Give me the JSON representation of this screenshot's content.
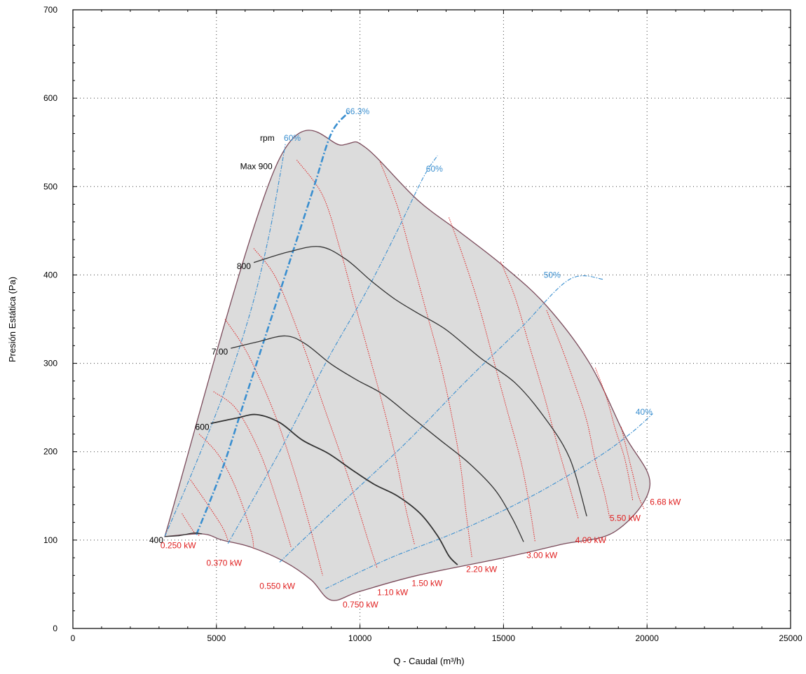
{
  "chart_data": {
    "type": "line",
    "xlabel": "Q - Caudal (m³/h)",
    "ylabel": "Presión Estática (Pa)",
    "xlim": [
      0,
      25000
    ],
    "ylim": [
      0,
      700
    ],
    "xticks": [
      0,
      5000,
      10000,
      15000,
      20000,
      25000
    ],
    "yticks": [
      0,
      100,
      200,
      300,
      400,
      500,
      600,
      700
    ],
    "grid": "dotted",
    "envelope": [
      [
        3200,
        104
      ],
      [
        7100,
        525
      ],
      [
        9400,
        547
      ],
      [
        10200,
        544
      ],
      [
        12000,
        485
      ],
      [
        13500,
        448
      ],
      [
        15000,
        410
      ],
      [
        16500,
        365
      ],
      [
        18000,
        300
      ],
      [
        19200,
        220
      ],
      [
        20100,
        162
      ],
      [
        18900,
        110
      ],
      [
        17000,
        95
      ],
      [
        15000,
        80
      ],
      [
        12000,
        60
      ],
      [
        10000,
        42
      ],
      [
        9000,
        32
      ],
      [
        8300,
        55
      ],
      [
        7400,
        75
      ],
      [
        6200,
        92
      ],
      [
        5200,
        100
      ],
      [
        4500,
        107
      ],
      [
        3200,
        104
      ]
    ],
    "rpm_curves": [
      {
        "label": "Max 900",
        "points": [
          [
            7100,
            525
          ],
          [
            9400,
            547
          ],
          [
            10200,
            544
          ],
          [
            12000,
            485
          ],
          [
            13500,
            448
          ],
          [
            15000,
            410
          ],
          [
            16500,
            365
          ],
          [
            18000,
            300
          ],
          [
            19200,
            220
          ],
          [
            20100,
            162
          ]
        ]
      },
      {
        "label": "800",
        "points": [
          [
            6300,
            414
          ],
          [
            7500,
            426
          ],
          [
            8600,
            432
          ],
          [
            9500,
            418
          ],
          [
            10400,
            393
          ],
          [
            11200,
            373
          ],
          [
            12000,
            357
          ],
          [
            13000,
            338
          ],
          [
            14200,
            306
          ],
          [
            15400,
            278
          ],
          [
            16400,
            240
          ],
          [
            17300,
            193
          ],
          [
            17900,
            127
          ]
        ]
      },
      {
        "label": "7.00",
        "points": [
          [
            5500,
            317
          ],
          [
            6400,
            324
          ],
          [
            7400,
            331
          ],
          [
            8100,
            322
          ],
          [
            9000,
            299
          ],
          [
            9900,
            281
          ],
          [
            10800,
            265
          ],
          [
            11800,
            239
          ],
          [
            12800,
            213
          ],
          [
            13800,
            187
          ],
          [
            14700,
            157
          ],
          [
            15300,
            125
          ],
          [
            15700,
            98
          ]
        ]
      },
      {
        "label": "600",
        "points": [
          [
            4800,
            232
          ],
          [
            5700,
            238
          ],
          [
            6400,
            242
          ],
          [
            7200,
            233
          ],
          [
            8000,
            213
          ],
          [
            8900,
            198
          ],
          [
            9700,
            180
          ],
          [
            10500,
            163
          ],
          [
            11300,
            150
          ],
          [
            12100,
            130
          ],
          [
            12700,
            105
          ],
          [
            13100,
            82
          ],
          [
            13400,
            72
          ]
        ]
      },
      {
        "label": "400",
        "points": [
          [
            3200,
            104
          ],
          [
            3700,
            105
          ],
          [
            4200,
            108
          ],
          [
            4500,
            107
          ]
        ]
      }
    ],
    "efficiency_curves": [
      {
        "label": "60%",
        "points": [
          [
            3200,
            104
          ],
          [
            4200,
            180
          ],
          [
            5300,
            270
          ],
          [
            6200,
            360
          ],
          [
            6800,
            440
          ],
          [
            7200,
            510
          ],
          [
            7400,
            548
          ]
        ]
      },
      {
        "label": "66.3%",
        "points": [
          [
            4300,
            106
          ],
          [
            5200,
            180
          ],
          [
            6000,
            260
          ],
          [
            6800,
            340
          ],
          [
            7600,
            420
          ],
          [
            8400,
            500
          ],
          [
            9000,
            560
          ],
          [
            9600,
            584
          ]
        ]
      },
      {
        "label": "60%",
        "points": [
          [
            5400,
            96
          ],
          [
            7200,
            200
          ],
          [
            8800,
            300
          ],
          [
            10200,
            380
          ],
          [
            11300,
            450
          ],
          [
            12200,
            510
          ],
          [
            12700,
            535
          ]
        ]
      },
      {
        "label": "50%",
        "points": [
          [
            7200,
            75
          ],
          [
            9300,
            140
          ],
          [
            11600,
            210
          ],
          [
            13700,
            280
          ],
          [
            15600,
            340
          ],
          [
            17300,
            395
          ],
          [
            18500,
            395
          ]
        ]
      },
      {
        "label": "40%",
        "points": [
          [
            8800,
            45
          ],
          [
            11000,
            79
          ],
          [
            13500,
            111
          ],
          [
            16000,
            150
          ],
          [
            18200,
            192
          ],
          [
            19400,
            220
          ],
          [
            20200,
            243
          ]
        ]
      }
    ],
    "power_curves": [
      {
        "label": "0.250 kW",
        "points": [
          [
            3800,
            130
          ],
          [
            4200,
            110
          ],
          [
            4400,
            105
          ]
        ]
      },
      {
        "label": "",
        "points": [
          [
            4100,
            168
          ],
          [
            4700,
            140
          ],
          [
            5200,
            115
          ],
          [
            5400,
            100
          ]
        ]
      },
      {
        "label": "0.370 kW",
        "points": [
          [
            4400,
            220
          ],
          [
            5100,
            195
          ],
          [
            5700,
            157
          ],
          [
            6200,
            110
          ],
          [
            6300,
            90
          ]
        ]
      },
      {
        "label": "",
        "points": [
          [
            4900,
            268
          ],
          [
            5700,
            248
          ],
          [
            6500,
            200
          ],
          [
            7100,
            145
          ],
          [
            7600,
            92
          ]
        ]
      },
      {
        "label": "0.550 kW",
        "points": [
          [
            5300,
            350
          ],
          [
            6100,
            310
          ],
          [
            7000,
            245
          ],
          [
            7700,
            178
          ],
          [
            8300,
            110
          ],
          [
            8700,
            60
          ]
        ]
      },
      {
        "label": "0.750 kW",
        "points": [
          [
            6300,
            430
          ],
          [
            7100,
            395
          ],
          [
            8000,
            322
          ],
          [
            8700,
            255
          ],
          [
            9400,
            190
          ],
          [
            9900,
            140
          ],
          [
            10300,
            98
          ],
          [
            10600,
            68
          ]
        ]
      },
      {
        "label": "1.10 kW",
        "points": [
          [
            7800,
            530
          ],
          [
            8700,
            490
          ],
          [
            9300,
            430
          ],
          [
            9800,
            370
          ],
          [
            10400,
            300
          ],
          [
            10900,
            240
          ],
          [
            11300,
            185
          ],
          [
            11600,
            135
          ],
          [
            11900,
            95
          ]
        ]
      },
      {
        "label": "1.50 kW",
        "points": [
          [
            10700,
            528
          ],
          [
            11300,
            478
          ],
          [
            11800,
            420
          ],
          [
            12300,
            360
          ],
          [
            12800,
            300
          ],
          [
            13200,
            240
          ],
          [
            13500,
            185
          ],
          [
            13700,
            130
          ],
          [
            13900,
            80
          ]
        ]
      },
      {
        "label": "2.20 kW",
        "points": [
          [
            13100,
            465
          ],
          [
            13600,
            420
          ],
          [
            14100,
            370
          ],
          [
            14600,
            310
          ],
          [
            15100,
            250
          ],
          [
            15600,
            190
          ],
          [
            15900,
            140
          ],
          [
            16100,
            98
          ]
        ]
      },
      {
        "label": "3.00 kW",
        "points": [
          [
            14900,
            415
          ],
          [
            15400,
            375
          ],
          [
            15900,
            320
          ],
          [
            16400,
            265
          ],
          [
            16900,
            205
          ],
          [
            17300,
            160
          ],
          [
            17600,
            125
          ]
        ]
      },
      {
        "label": "4.00 kW",
        "points": [
          [
            16500,
            360
          ],
          [
            17000,
            320
          ],
          [
            17500,
            275
          ],
          [
            17900,
            235
          ],
          [
            18200,
            190
          ],
          [
            18500,
            155
          ],
          [
            18700,
            125
          ]
        ]
      },
      {
        "label": "5.50 kW",
        "points": [
          [
            18200,
            295
          ],
          [
            18600,
            260
          ],
          [
            18900,
            225
          ],
          [
            19200,
            195
          ],
          [
            19400,
            165
          ],
          [
            19500,
            145
          ]
        ]
      },
      {
        "label": "6.68 kW",
        "points": [
          [
            19100,
            228
          ],
          [
            19500,
            175
          ],
          [
            19700,
            150
          ],
          [
            19900,
            135
          ]
        ]
      }
    ],
    "labels": [
      {
        "text": "rpm",
        "x": 6520,
        "y": 555,
        "color": "#000000"
      },
      {
        "text": "60%",
        "x": 7350,
        "y": 555,
        "color": "#3a8fd0"
      },
      {
        "text": "Max 900",
        "x": 6950,
        "y": 523,
        "color": "#000000"
      },
      {
        "text": "800",
        "x": 6200,
        "y": 410,
        "color": "#000000"
      },
      {
        "text": "7.00",
        "x": 5400,
        "y": 313,
        "color": "#000000"
      },
      {
        "text": "600",
        "x": 4750,
        "y": 228,
        "color": "#000000"
      },
      {
        "text": "400",
        "x": 3150,
        "y": 100,
        "color": "#000000"
      },
      {
        "text": "66.3%",
        "x": 9500,
        "y": 585,
        "color": "#3a8fd0"
      },
      {
        "text": "60%",
        "x": 12300,
        "y": 520,
        "color": "#3a8fd0"
      },
      {
        "text": "50%",
        "x": 16400,
        "y": 400,
        "color": "#3a8fd0"
      },
      {
        "text": "40%",
        "x": 19600,
        "y": 245,
        "color": "#3a8fd0"
      },
      {
        "text": "0.250 kW",
        "x": 3050,
        "y": 94,
        "color": "#e02020"
      },
      {
        "text": "0.370 kW",
        "x": 4650,
        "y": 74,
        "color": "#e02020"
      },
      {
        "text": "0.550 kW",
        "x": 6500,
        "y": 48,
        "color": "#e02020"
      },
      {
        "text": "0.750 kW",
        "x": 9400,
        "y": 27,
        "color": "#e02020"
      },
      {
        "text": "1.10 kW",
        "x": 10600,
        "y": 41,
        "color": "#e02020"
      },
      {
        "text": "1.50 kW",
        "x": 11800,
        "y": 51,
        "color": "#e02020"
      },
      {
        "text": "2.20 kW",
        "x": 13700,
        "y": 67,
        "color": "#e02020"
      },
      {
        "text": "3.00 kW",
        "x": 15800,
        "y": 83,
        "color": "#e02020"
      },
      {
        "text": "4.00 kW",
        "x": 17500,
        "y": 100,
        "color": "#e02020"
      },
      {
        "text": "5.50 kW",
        "x": 18700,
        "y": 125,
        "color": "#e02020"
      },
      {
        "text": "6.68 kW",
        "x": 20100,
        "y": 143,
        "color": "#e02020"
      }
    ],
    "colors": {
      "envelope_fill": "#dcdcdc",
      "envelope_stroke": "#7a4a5a",
      "rpm": "#333333",
      "efficiency": "#3a8fd0",
      "power": "#e02020",
      "grid": "#404040"
    }
  }
}
